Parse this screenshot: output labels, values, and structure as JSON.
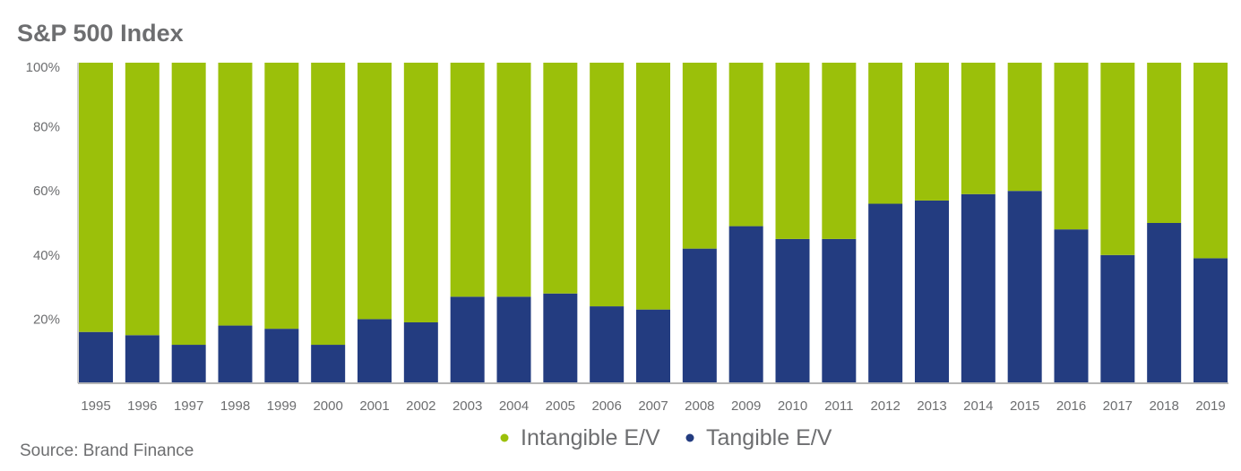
{
  "chart_data": {
    "type": "bar",
    "stacked": true,
    "title": "S&P 500 Index",
    "source": "Source: Brand Finance",
    "xlabel": "",
    "ylabel": "",
    "ylim": [
      0,
      100
    ],
    "y_ticks": [
      "20%",
      "40%",
      "60%",
      "80%",
      "100%"
    ],
    "y_tick_values": [
      20,
      40,
      60,
      80,
      100
    ],
    "grid": false,
    "legend_position": "bottom-center",
    "categories": [
      "1995",
      "1996",
      "1997",
      "1998",
      "1999",
      "2000",
      "2001",
      "2002",
      "2003",
      "2004",
      "2005",
      "2006",
      "2007",
      "2008",
      "2009",
      "2010",
      "2011",
      "2012",
      "2013",
      "2014",
      "2015",
      "2016",
      "2017",
      "2018",
      "2019"
    ],
    "series": [
      {
        "name": "Tangible E/V",
        "color": "#233c80",
        "values": [
          16,
          15,
          12,
          18,
          17,
          12,
          20,
          19,
          27,
          27,
          28,
          24,
          23,
          42,
          49,
          45,
          45,
          56,
          57,
          59,
          60,
          48,
          40,
          50,
          39
        ]
      },
      {
        "name": "Intangible E/V",
        "color": "#9bc00a",
        "values": [
          84,
          85,
          88,
          82,
          83,
          88,
          80,
          81,
          73,
          73,
          72,
          76,
          77,
          58,
          51,
          55,
          55,
          44,
          43,
          41,
          40,
          52,
          60,
          50,
          61
        ]
      }
    ],
    "legend": [
      {
        "label": "Intangible E/V",
        "color": "#9bc00a"
      },
      {
        "label": "Tangible E/V",
        "color": "#233c80"
      }
    ]
  }
}
